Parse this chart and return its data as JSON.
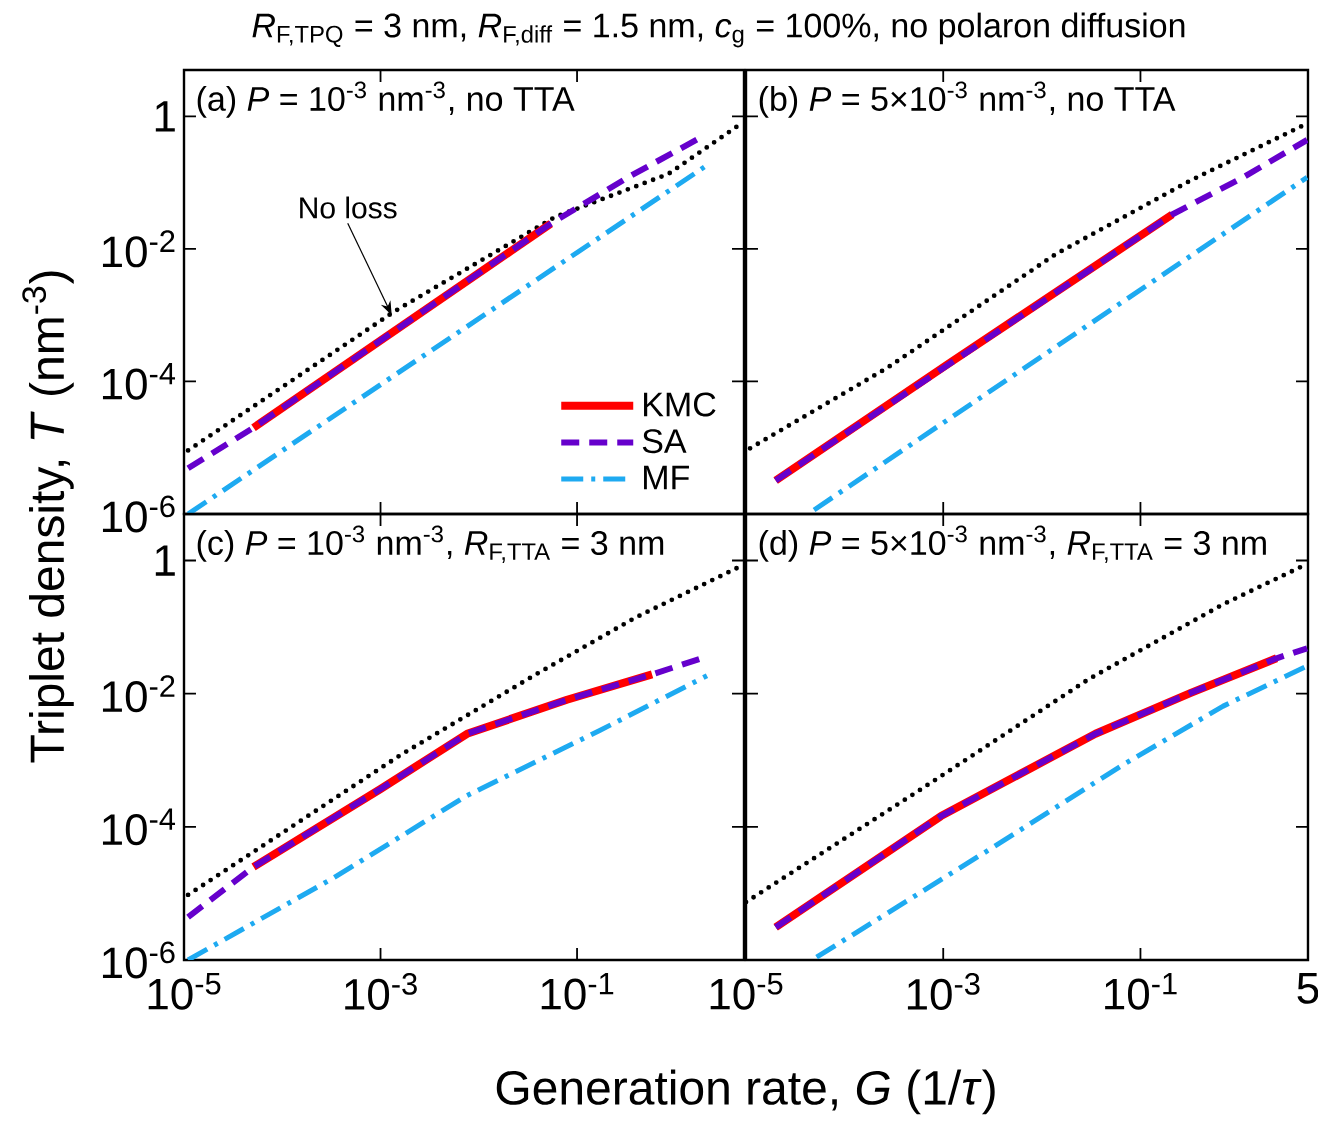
{
  "chart_data": [
    {
      "type": "line",
      "title": "(a) *P* = 10$^{-3}$ nm$^{-3}$, no TTA",
      "ylabel": "Triplet density, *T* (nm$^{-3}$)",
      "log": "xy",
      "legend": "bottom right",
      "tick_labels": "y",
      "xlim": [
        1e-05,
        5
      ],
      "ylim": [
        1e-06,
        5
      ],
      "xticks": [
        {
          "value": 1e-05,
          "label": null
        },
        {
          "value": 0.001,
          "label": null
        },
        {
          "value": 0.1,
          "label": null
        }
      ],
      "yticks": [
        {
          "value": 1e-06,
          "label": "10$^{-6}$"
        },
        {
          "value": 0.0001,
          "label": "10$^{-4}$"
        },
        {
          "value": 0.01,
          "label": "10$^{-2}$"
        },
        1
      ],
      "annotations": [
        "*R*$_{F,TPQ}$ = 3 nm, *R*$_{F,diff}$ = 1.5 nm, *c*$_{g}$ = 100%, no polaron diffusion",
        {
          "text": "No loss",
          "x": 0.0013,
          "y": 0.001
        }
      ],
      "series": [
        {
          "color": "#000000",
          "line_style": "dotted",
          "x": [
            1.1e-05,
            0.0014,
            0.059,
            0.85,
            4.7
          ],
          "values": [
            9.1e-06,
            0.00115,
            0.03,
            0.135,
            0.78
          ]
        },
        {
          "name": "KMC",
          "color": "#ff0000",
          "line_style": "solid",
          "x": [
            5.1e-05,
            0.054
          ],
          "values": [
            2e-05,
            0.024
          ]
        },
        {
          "name": "SA",
          "color": "#6600cc",
          "line_style": "dashed",
          "x": [
            1.1e-05,
            5.1e-05,
            0.054,
            0.33,
            2.0
          ],
          "values": [
            4.9e-06,
            2e-05,
            0.024,
            0.12,
            0.52
          ]
        },
        {
          "name": "MF",
          "color": "#1eaaf1",
          "line_style": "dashdot",
          "x": [
            1.1e-05,
            2.3
          ],
          "values": [
            1e-06,
            0.2
          ]
        }
      ]
    },
    {
      "type": "line",
      "title": "(b) *P* = 5×10$^{-3}$ nm$^{-3}$, no TTA",
      "log": "xy",
      "tick_labels": false,
      "xlim": [
        1e-05,
        5
      ],
      "ylim": [
        1e-06,
        5
      ],
      "xticks": [
        {
          "value": 1e-05,
          "label": null
        },
        {
          "value": 0.001,
          "label": null
        },
        {
          "value": 0.1,
          "label": null
        },
        {
          "value": 5,
          "label": null
        }
      ],
      "yticks": [
        {
          "value": 1e-06,
          "label": null
        },
        {
          "value": 0.0001,
          "label": null
        },
        {
          "value": 0.01,
          "label": null
        },
        {
          "value": 1,
          "label": null
        }
      ],
      "series": [
        {
          "color": "#000000",
          "line_style": "dotted",
          "x": [
            1.1e-05,
            0.00027,
            0.0138,
            0.32,
            4.9
          ],
          "values": [
            9.8e-06,
            0.00016,
            0.0083,
            0.107,
            0.78
          ]
        },
        {
          "color": "#ff0000",
          "line_style": "solid",
          "x": [
            2e-05,
            0.0011,
            0.21
          ],
          "values": [
            3.2e-06,
            0.00018,
            0.033
          ]
        },
        {
          "color": "#6600cc",
          "line_style": "dashed",
          "x": [
            2e-05,
            0.21,
            1.1,
            4.9
          ],
          "values": [
            3.2e-06,
            0.033,
            0.12,
            0.44
          ]
        },
        {
          "color": "#1eaaf1",
          "line_style": "dashdot",
          "x": [
            4.9e-05,
            4.9
          ],
          "values": [
            1.15e-06,
            0.12
          ]
        }
      ]
    },
    {
      "type": "line",
      "title": "(c) *P* = 10$^{-3}$ nm$^{-3}$, *R*$_{F,TTA}$ = 3 nm",
      "xlabel": "Generation rate, *G* (1/*τ*)",
      "log": "xy",
      "xlim": [
        1e-05,
        5
      ],
      "ylim": [
        1e-06,
        5
      ],
      "xticks": [
        {
          "value": 1e-05,
          "label": "10$^{-5}$"
        },
        {
          "value": 0.001,
          "label": "10$^{-3}$"
        },
        {
          "value": 0.1,
          "label": "10$^{-1}$"
        }
      ],
      "yticks": [
        {
          "value": 1e-06,
          "label": "10$^{-6}$"
        },
        {
          "value": 0.0001,
          "label": "10$^{-4}$"
        },
        {
          "value": 0.01,
          "label": "10$^{-2}$"
        },
        1
      ],
      "series": [
        {
          "color": "#000000",
          "line_style": "dotted",
          "x": [
            1.1e-05,
            0.0016,
            0.037,
            0.39,
            4.7
          ],
          "values": [
            9.5e-06,
            0.0012,
            0.019,
            0.138,
            0.83
          ]
        },
        {
          "color": "#ff0000",
          "line_style": "solid",
          "x": [
            5.1e-05,
            0.001,
            0.0076,
            0.079,
            0.58
          ],
          "values": [
            2.5e-05,
            0.00037,
            0.0025,
            0.0081,
            0.0195
          ]
        },
        {
          "color": "#6600cc",
          "line_style": "dashed",
          "x": [
            1.1e-05,
            5.1e-05,
            0.001,
            0.0076,
            0.079,
            0.58,
            2.1
          ],
          "values": [
            4.4e-06,
            2.5e-05,
            0.00037,
            0.0025,
            0.0081,
            0.0195,
            0.036
          ]
        },
        {
          "color": "#1eaaf1",
          "line_style": "dashdot",
          "x": [
            1.1e-05,
            0.00033,
            0.0076,
            0.17,
            2.1
          ],
          "values": [
            1e-06,
            1.7e-05,
            0.000295,
            0.0028,
            0.0186
          ]
        }
      ]
    },
    {
      "type": "line",
      "title": "(d) *P* = 5×10$^{-3}$ nm$^{-3}$, *R*$_{F,TTA}$ = 3 nm",
      "log": "xy",
      "tick_labels": "x",
      "xlim": [
        1e-05,
        5
      ],
      "ylim": [
        1e-06,
        5
      ],
      "xticks": [
        {
          "value": 1e-05,
          "label": "10$^{-5}$"
        },
        {
          "value": 0.001,
          "label": "10$^{-3}$"
        },
        {
          "value": 0.1,
          "label": "10$^{-1}$"
        },
        5
      ],
      "yticks": [
        {
          "value": 1e-06,
          "label": null
        },
        {
          "value": 0.0001,
          "label": null
        },
        {
          "value": 0.01,
          "label": null
        },
        {
          "value": 1,
          "label": null
        }
      ],
      "series": [
        {
          "color": "#000000",
          "line_style": "dotted",
          "x": [
            1e-05,
            0.0006,
            0.03,
            0.69,
            4.9
          ],
          "values": [
            7.4e-06,
            0.00037,
            0.0166,
            0.22,
            0.89
          ]
        },
        {
          "color": "#ff0000",
          "line_style": "solid",
          "x": [
            2e-05,
            0.00095,
            0.035,
            0.32,
            2.4
          ],
          "values": [
            3.1e-06,
            0.000145,
            0.0025,
            0.0102,
            0.034
          ]
        },
        {
          "color": "#6600cc",
          "line_style": "dashed",
          "x": [
            2e-05,
            0.00095,
            0.035,
            0.32,
            2.4,
            4.9
          ],
          "values": [
            3.1e-06,
            0.000145,
            0.0025,
            0.0102,
            0.034,
            0.048
          ]
        },
        {
          "color": "#1eaaf1",
          "line_style": "dashdot",
          "x": [
            5.2e-05,
            0.0029,
            0.066,
            0.69,
            4.9
          ],
          "values": [
            1.1e-06,
            4.5e-05,
            0.00085,
            0.0065,
            0.026
          ]
        }
      ]
    }
  ]
}
